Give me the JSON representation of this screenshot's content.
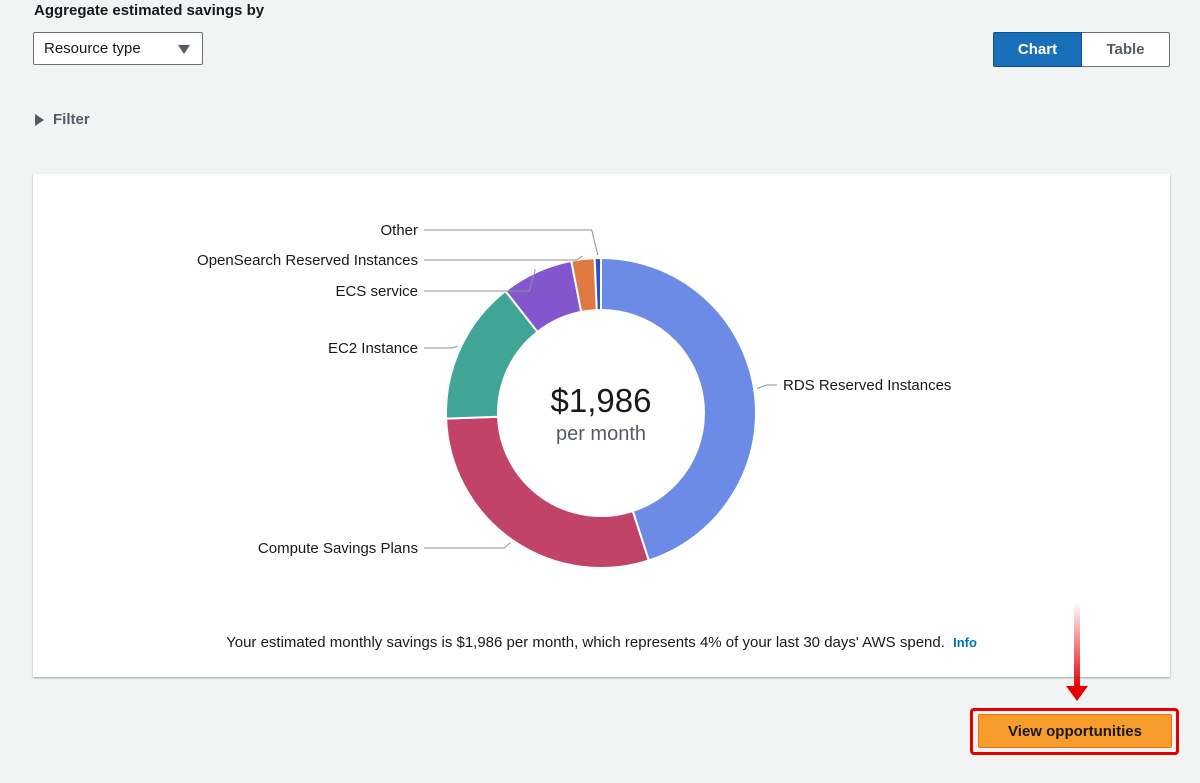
{
  "header": {
    "aggregate_label": "Aggregate estimated savings by",
    "select_value": "Resource type"
  },
  "view_toggle": {
    "chart_label": "Chart",
    "table_label": "Table",
    "selected": "Chart"
  },
  "filter": {
    "label": "Filter"
  },
  "chart_data": {
    "type": "pie",
    "title": "",
    "center_value": "$1,986",
    "center_unit": "per month",
    "categories": [
      "RDS Reserved Instances",
      "Compute Savings Plans",
      "EC2 Instance",
      "ECS service",
      "OpenSearch Reserved Instances",
      "Other"
    ],
    "values": [
      894,
      584,
      298,
      149,
      48,
      13
    ],
    "colors": [
      "#6b8be6",
      "#c14468",
      "#41a596",
      "#8456ce",
      "#e07941",
      "#2d50c2"
    ]
  },
  "summary": {
    "text": "Your estimated monthly savings is $1,986 per month, which represents 4% of your last 30 days' AWS spend.",
    "info_label": "Info"
  },
  "actions": {
    "view_opportunities_label": "View opportunities"
  },
  "annotation": {
    "color": "#e60000"
  }
}
